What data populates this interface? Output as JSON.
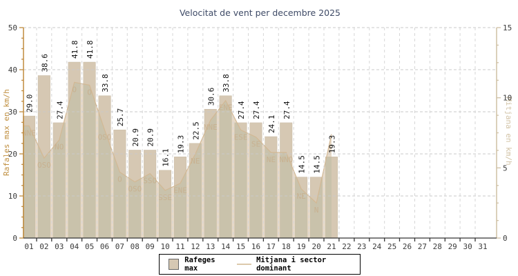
{
  "page": {
    "background": "#ffffff"
  },
  "chart_data": {
    "type": "bar",
    "title": "Velocitat de vent per decembre 2025",
    "left_axis": {
      "label": "Rafales max en km/h",
      "min": 0,
      "max": 50,
      "major_tick": 10,
      "minor_tick": 2.5
    },
    "right_axis": {
      "label": "Mitjana en km/h",
      "min": 0,
      "max": 15,
      "major_tick": 5,
      "minor_tick": 1.25
    },
    "categories": [
      "01",
      "02",
      "03",
      "04",
      "05",
      "06",
      "07",
      "08",
      "09",
      "10",
      "11",
      "12",
      "13",
      "14",
      "15",
      "16",
      "17",
      "18",
      "19",
      "20",
      "21",
      "22",
      "23",
      "24",
      "25",
      "26",
      "27",
      "28",
      "29",
      "30",
      "31"
    ],
    "series": [
      {
        "name": "Rafeges max",
        "type": "bar",
        "axis": "left",
        "values": [
          29.0,
          38.6,
          27.4,
          41.8,
          41.8,
          33.8,
          25.7,
          20.9,
          20.9,
          16.1,
          19.3,
          22.5,
          30.6,
          33.8,
          27.4,
          27.4,
          24.1,
          27.4,
          14.5,
          14.5,
          19.3,
          null,
          null,
          null,
          null,
          null,
          null,
          null,
          null,
          null,
          null
        ]
      },
      {
        "name": "Mitjana i sector dominant",
        "type": "area-line",
        "axis": "right",
        "values": [
          8.0,
          5.7,
          7.0,
          11.1,
          10.9,
          7.7,
          4.7,
          4.0,
          4.6,
          3.4,
          3.9,
          6.0,
          8.4,
          9.8,
          7.7,
          7.2,
          6.1,
          6.1,
          3.5,
          2.5,
          7.4,
          null,
          null,
          null,
          null,
          null,
          null,
          null,
          null,
          null,
          null
        ],
        "sectors": [
          "NNE",
          "OSO",
          "NO",
          "O",
          "O",
          "OSO",
          "O",
          "OSO",
          "SSO",
          "SSE",
          "ENE",
          "NE",
          "NNE",
          "ENE",
          "ESE",
          "SE",
          "NE",
          "NNO",
          "NE",
          "N",
          "",
          null,
          null,
          null,
          null,
          null,
          null,
          null,
          null,
          null,
          null
        ]
      }
    ],
    "legend": [
      {
        "swatch": "bar",
        "label": "Rafeges max"
      },
      {
        "swatch": "line",
        "label": "Mitjana i sector dominant"
      }
    ],
    "grid": true,
    "colors": {
      "bar": "#d6c8b3",
      "bar_stroke": "#c6b8a1",
      "area": "#e7d9c7",
      "overlap": "#c9c2ab",
      "avg_line": "#d2b894",
      "sector_text": "#c8b190",
      "title_text": "#3e4a66",
      "left_axis": "#c08b3e",
      "right_axis": "#cfc0a4",
      "bottom_axis": "#333333",
      "grid_h": "#c9c9c9",
      "grid_v": "#d6d6d6",
      "tick_text": "#3a3a3a",
      "value_text": "#111111"
    }
  }
}
